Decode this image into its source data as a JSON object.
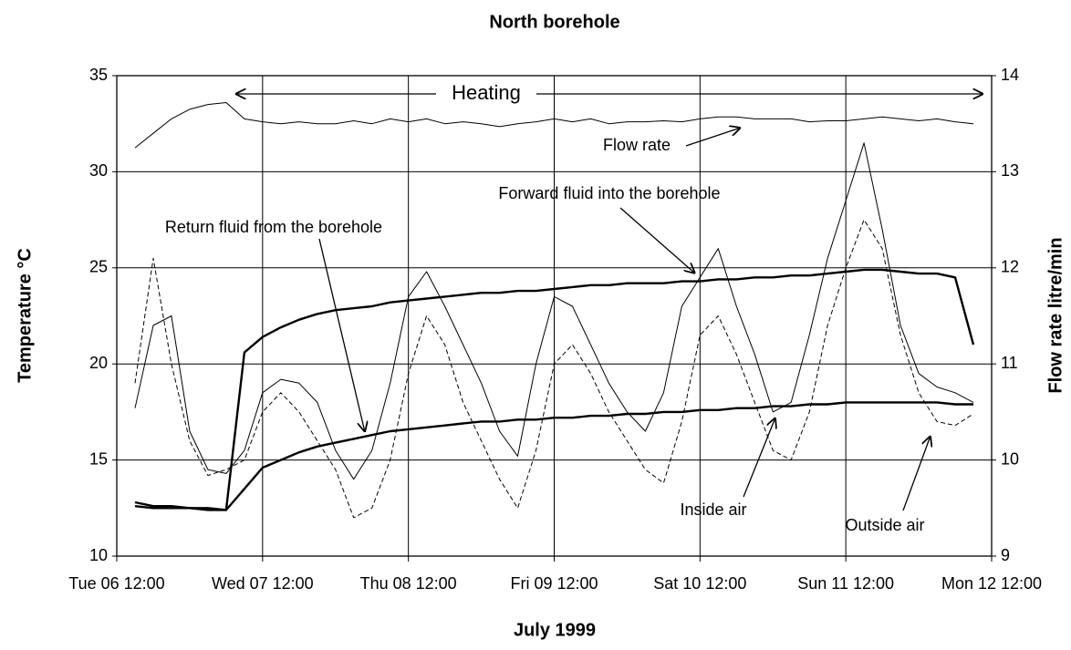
{
  "chart_data": {
    "type": "line",
    "title": "North borehole",
    "x_label": "July 1999",
    "y_label": "Temperature °C",
    "y2_label": "Flow rate litre/min",
    "annotations": [
      "Heating"
    ],
    "x": [
      "1999-07-06T15:00",
      "1999-07-06T18:00",
      "1999-07-06T21:00",
      "1999-07-07T00:00",
      "1999-07-07T03:00",
      "1999-07-07T06:00",
      "1999-07-07T09:00",
      "1999-07-07T12:00",
      "1999-07-07T15:00",
      "1999-07-07T18:00",
      "1999-07-07T21:00",
      "1999-07-08T00:00",
      "1999-07-08T03:00",
      "1999-07-08T06:00",
      "1999-07-08T09:00",
      "1999-07-08T12:00",
      "1999-07-08T15:00",
      "1999-07-08T18:00",
      "1999-07-08T21:00",
      "1999-07-09T00:00",
      "1999-07-09T03:00",
      "1999-07-09T06:00",
      "1999-07-09T09:00",
      "1999-07-09T12:00",
      "1999-07-09T15:00",
      "1999-07-09T18:00",
      "1999-07-09T21:00",
      "1999-07-10T00:00",
      "1999-07-10T03:00",
      "1999-07-10T06:00",
      "1999-07-10T09:00",
      "1999-07-10T12:00",
      "1999-07-10T15:00",
      "1999-07-10T18:00",
      "1999-07-10T21:00",
      "1999-07-11T00:00",
      "1999-07-11T03:00",
      "1999-07-11T06:00",
      "1999-07-11T09:00",
      "1999-07-11T12:00",
      "1999-07-11T15:00",
      "1999-07-11T18:00",
      "1999-07-11T21:00",
      "1999-07-12T00:00",
      "1999-07-12T03:00",
      "1999-07-12T06:00",
      "1999-07-12T09:00"
    ],
    "xlim": [
      "1999-07-06T12:00",
      "1999-07-12T12:00"
    ],
    "xticks": [
      {
        "value": "1999-07-06T12:00",
        "label": "Tue 06 12:00"
      },
      {
        "value": "1999-07-07T12:00",
        "label": "Wed 07 12:00"
      },
      {
        "value": "1999-07-08T12:00",
        "label": "Thu 08 12:00"
      },
      {
        "value": "1999-07-09T12:00",
        "label": "Fri 09 12:00"
      },
      {
        "value": "1999-07-10T12:00",
        "label": "Sat 10 12:00"
      },
      {
        "value": "1999-07-11T12:00",
        "label": "Sun 11 12:00"
      },
      {
        "value": "1999-07-12T12:00",
        "label": "Mon 12 12:00"
      }
    ],
    "ylim": [
      10,
      35
    ],
    "yticks": [
      10,
      15,
      20,
      25,
      30,
      35
    ],
    "y2lim": [
      9,
      14
    ],
    "y2ticks": [
      9,
      10,
      11,
      12,
      13,
      14
    ],
    "grid": true,
    "series": [
      {
        "name": "Flow rate",
        "color": "#000000",
        "style": "thin",
        "axis": "y2",
        "values": [
          13.25,
          13.4,
          13.55,
          13.65,
          13.7,
          13.72,
          13.55,
          13.52,
          13.5,
          13.52,
          13.5,
          13.5,
          13.53,
          13.5,
          13.55,
          13.52,
          13.55,
          13.5,
          13.52,
          13.5,
          13.47,
          13.5,
          13.52,
          13.55,
          13.52,
          13.55,
          13.5,
          13.52,
          13.52,
          13.53,
          13.52,
          13.55,
          13.57,
          13.57,
          13.55,
          13.55,
          13.55,
          13.52,
          13.53,
          13.53,
          13.55,
          13.57,
          13.55,
          13.53,
          13.55,
          13.52,
          13.5
        ]
      },
      {
        "name": "Forward fluid into the borehole",
        "color": "#000000",
        "style": "thick",
        "values": [
          12.8,
          12.6,
          12.6,
          12.5,
          12.5,
          12.4,
          20.6,
          21.4,
          21.9,
          22.3,
          22.6,
          22.8,
          22.9,
          23.0,
          23.2,
          23.3,
          23.4,
          23.5,
          23.6,
          23.7,
          23.7,
          23.8,
          23.8,
          23.9,
          24.0,
          24.1,
          24.1,
          24.2,
          24.2,
          24.2,
          24.3,
          24.3,
          24.4,
          24.4,
          24.5,
          24.5,
          24.6,
          24.6,
          24.7,
          24.8,
          24.9,
          24.9,
          24.8,
          24.7,
          24.7,
          24.5,
          21.0
        ]
      },
      {
        "name": "Return fluid from the borehole",
        "color": "#000000",
        "style": "thick",
        "values": [
          12.6,
          12.5,
          12.5,
          12.5,
          12.4,
          12.4,
          13.5,
          14.6,
          15.0,
          15.4,
          15.7,
          15.9,
          16.1,
          16.3,
          16.5,
          16.6,
          16.7,
          16.8,
          16.9,
          17.0,
          17.0,
          17.1,
          17.1,
          17.2,
          17.2,
          17.3,
          17.3,
          17.4,
          17.4,
          17.5,
          17.5,
          17.6,
          17.6,
          17.7,
          17.7,
          17.8,
          17.8,
          17.9,
          17.9,
          18.0,
          18.0,
          18.0,
          18.0,
          18.0,
          18.0,
          17.9,
          17.9
        ]
      },
      {
        "name": "Inside air",
        "color": "#000000",
        "style": "thin",
        "values": [
          17.7,
          22.0,
          22.5,
          16.5,
          14.5,
          14.3,
          15.5,
          18.5,
          19.2,
          19.0,
          18.0,
          15.5,
          14.0,
          15.5,
          19.0,
          23.5,
          24.8,
          23.0,
          21.0,
          19.0,
          16.5,
          15.2,
          20.0,
          23.5,
          23.0,
          21.0,
          19.0,
          17.5,
          16.5,
          18.5,
          23.0,
          24.5,
          26.0,
          23.0,
          20.5,
          17.5,
          18.0,
          21.5,
          25.5,
          28.5,
          31.5,
          27.0,
          22.0,
          19.5,
          18.8,
          18.5,
          18.0
        ]
      },
      {
        "name": "Outside air",
        "color": "#000000",
        "style": "dashed",
        "values": [
          19.0,
          25.5,
          20.0,
          16.0,
          14.2,
          14.5,
          15.0,
          17.5,
          18.5,
          17.5,
          16.0,
          14.5,
          12.0,
          12.5,
          15.0,
          19.5,
          22.5,
          21.0,
          18.0,
          16.0,
          14.0,
          12.5,
          15.5,
          20.0,
          21.0,
          19.5,
          17.5,
          16.0,
          14.5,
          13.8,
          17.0,
          21.5,
          22.5,
          20.5,
          18.0,
          15.5,
          15.0,
          17.5,
          22.0,
          25.0,
          27.5,
          26.0,
          21.5,
          18.5,
          17.0,
          16.8,
          17.4
        ]
      }
    ]
  }
}
